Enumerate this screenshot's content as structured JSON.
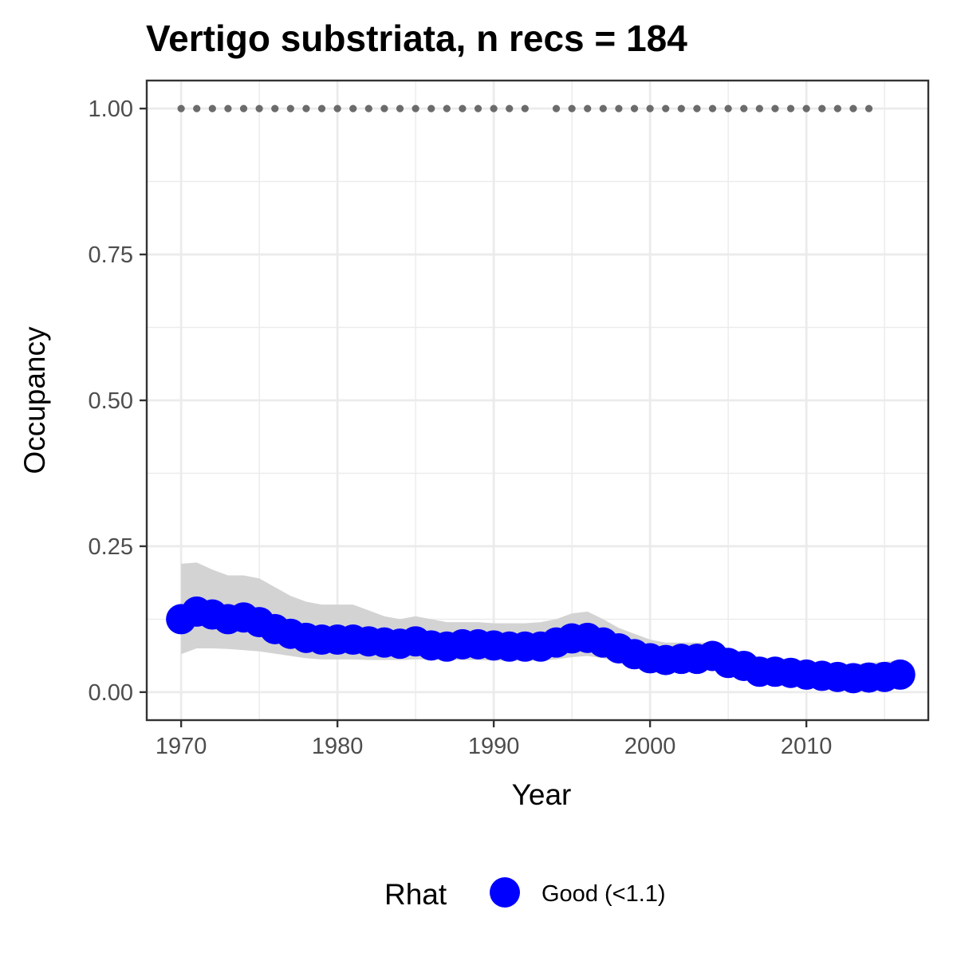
{
  "chart_data": {
    "type": "line",
    "title": "Vertigo substriata, n recs = 184",
    "xlabel": "Year",
    "ylabel": "Occupancy",
    "xlim": [
      1967.8,
      2017.8
    ],
    "ylim": [
      -0.048,
      1.048
    ],
    "x_ticks": [
      1970,
      1980,
      1990,
      2000,
      2010
    ],
    "y_ticks": [
      0,
      0.25,
      0.5,
      0.75,
      1
    ],
    "x_tick_labels": [
      "1970",
      "1980",
      "1990",
      "2000",
      "2010"
    ],
    "y_tick_labels": [
      "0.00",
      "0.25",
      "0.50",
      "0.75",
      "1.00"
    ],
    "grid": true,
    "legend": {
      "position": "bottom",
      "title": "Rhat",
      "entries": [
        {
          "label": "Good (<1.1)",
          "color": "#0000ff"
        }
      ]
    },
    "colors": {
      "points": "#0000ff",
      "ribbon": "#d3d3d3",
      "record_dots": "#6b6b6b",
      "panel_border": "#333333",
      "grid": "#ebebeb"
    },
    "series": [
      {
        "type": "ribbon",
        "x": [
          1970,
          1971,
          1972,
          1973,
          1974,
          1975,
          1976,
          1977,
          1978,
          1979,
          1980,
          1981,
          1982,
          1983,
          1984,
          1985,
          1986,
          1987,
          1988,
          1989,
          1990,
          1991,
          1992,
          1993,
          1994,
          1995,
          1996,
          1997,
          1998,
          1999,
          2000,
          2001,
          2002,
          2003,
          2004,
          2005,
          2006,
          2007,
          2008,
          2009,
          2010,
          2011,
          2012,
          2013,
          2014,
          2015,
          2016
        ],
        "lower": [
          0.065,
          0.075,
          0.075,
          0.074,
          0.072,
          0.07,
          0.066,
          0.062,
          0.058,
          0.056,
          0.056,
          0.056,
          0.055,
          0.055,
          0.055,
          0.056,
          0.056,
          0.055,
          0.055,
          0.055,
          0.054,
          0.054,
          0.054,
          0.054,
          0.056,
          0.06,
          0.062,
          0.058,
          0.052,
          0.046,
          0.04,
          0.038,
          0.038,
          0.038,
          0.038,
          0.034,
          0.03,
          0.025,
          0.023,
          0.021,
          0.019,
          0.017,
          0.015,
          0.013,
          0.014,
          0.015,
          0.016
        ],
        "upper": [
          0.22,
          0.222,
          0.21,
          0.2,
          0.2,
          0.195,
          0.18,
          0.165,
          0.155,
          0.15,
          0.15,
          0.15,
          0.14,
          0.13,
          0.125,
          0.13,
          0.125,
          0.12,
          0.12,
          0.12,
          0.118,
          0.118,
          0.118,
          0.12,
          0.125,
          0.135,
          0.138,
          0.125,
          0.11,
          0.1,
          0.09,
          0.085,
          0.085,
          0.085,
          0.085,
          0.075,
          0.068,
          0.06,
          0.058,
          0.055,
          0.052,
          0.05,
          0.048,
          0.048,
          0.05,
          0.052,
          0.055
        ]
      },
      {
        "name": "Good (<1.1)",
        "type": "points",
        "x": [
          1970,
          1971,
          1972,
          1973,
          1974,
          1975,
          1976,
          1977,
          1978,
          1979,
          1980,
          1981,
          1982,
          1983,
          1984,
          1985,
          1986,
          1987,
          1988,
          1989,
          1990,
          1991,
          1992,
          1993,
          1994,
          1995,
          1996,
          1997,
          1998,
          1999,
          2000,
          2001,
          2002,
          2003,
          2004,
          2005,
          2006,
          2007,
          2008,
          2009,
          2010,
          2011,
          2012,
          2013,
          2014,
          2015,
          2016
        ],
        "y": [
          0.125,
          0.138,
          0.133,
          0.125,
          0.128,
          0.12,
          0.108,
          0.1,
          0.093,
          0.09,
          0.09,
          0.09,
          0.087,
          0.085,
          0.083,
          0.087,
          0.08,
          0.078,
          0.082,
          0.082,
          0.08,
          0.078,
          0.078,
          0.078,
          0.085,
          0.092,
          0.093,
          0.085,
          0.075,
          0.065,
          0.058,
          0.055,
          0.057,
          0.057,
          0.062,
          0.05,
          0.045,
          0.035,
          0.035,
          0.033,
          0.03,
          0.028,
          0.026,
          0.024,
          0.025,
          0.026,
          0.03
        ]
      },
      {
        "type": "record_dots",
        "y_value": 1.0,
        "x": [
          1970,
          1971,
          1972,
          1973,
          1974,
          1975,
          1976,
          1977,
          1978,
          1979,
          1980,
          1981,
          1982,
          1983,
          1984,
          1985,
          1986,
          1987,
          1988,
          1989,
          1990,
          1991,
          1992,
          1994,
          1995,
          1996,
          1997,
          1998,
          1999,
          2000,
          2001,
          2002,
          2003,
          2004,
          2005,
          2006,
          2007,
          2008,
          2009,
          2010,
          2011,
          2012,
          2013,
          2014
        ]
      }
    ]
  }
}
